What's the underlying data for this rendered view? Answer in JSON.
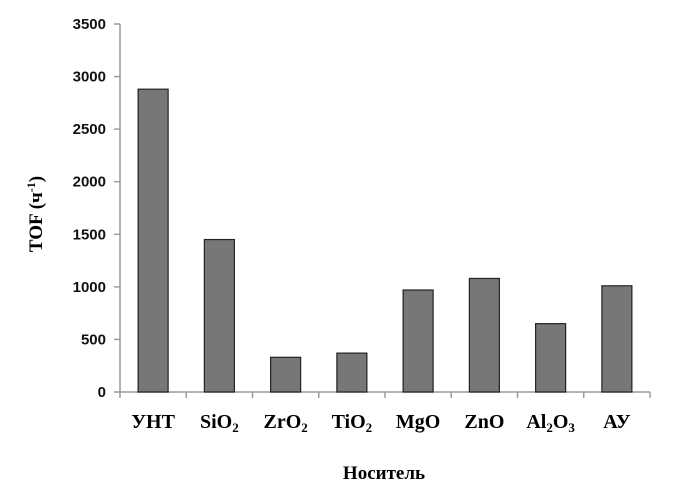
{
  "chart_data": {
    "type": "bar",
    "categories": [
      "УНТ",
      "SiO2",
      "ZrO2",
      "TiO2",
      "MgO",
      "ZnO",
      "Al2O3",
      "АУ"
    ],
    "category_labels": [
      [
        {
          "t": "УНТ"
        }
      ],
      [
        {
          "t": "SiO"
        },
        {
          "t": "2",
          "sub": true
        }
      ],
      [
        {
          "t": "ZrO"
        },
        {
          "t": "2",
          "sub": true
        }
      ],
      [
        {
          "t": "TiO"
        },
        {
          "t": "2",
          "sub": true
        }
      ],
      [
        {
          "t": "MgO"
        }
      ],
      [
        {
          "t": "ZnO"
        }
      ],
      [
        {
          "t": "Al"
        },
        {
          "t": "2",
          "sub": true
        },
        {
          "t": "O"
        },
        {
          "t": "3",
          "sub": true
        }
      ],
      [
        {
          "t": "АУ"
        }
      ]
    ],
    "values": [
      2880,
      1450,
      330,
      370,
      970,
      1080,
      650,
      1010
    ],
    "ylim": [
      0,
      3500
    ],
    "yticks": [
      0,
      500,
      1000,
      1500,
      2000,
      2500,
      3000,
      3500
    ],
    "ytick_labels": [
      "0",
      "500",
      "1000",
      "1500",
      "2000",
      "2500",
      "3000",
      "3500"
    ],
    "ylabel": "TOF (ч-1)",
    "ylabel_parts": [
      {
        "t": "TOF (ч"
      },
      {
        "t": "-1",
        "sup": true
      },
      {
        "t": ")"
      }
    ],
    "xlabel": "Носитель",
    "grid": false,
    "bar_color": "#777777",
    "bar_edge_color": "#222222",
    "axis_color": "#9a9a9a"
  }
}
